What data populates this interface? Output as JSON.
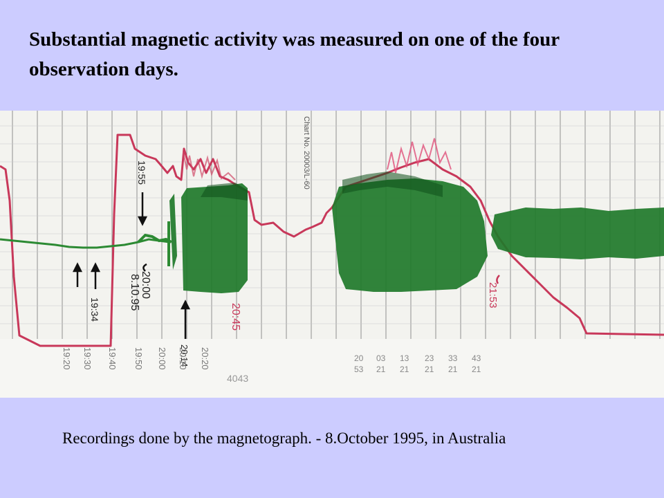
{
  "slide": {
    "title": "Substantial magnetic activity was measured on one of the four observation days.",
    "caption": "Recordings done by the magnetograph. - 8.October 1995, in Australia"
  },
  "photo": {
    "annotations": {
      "chart_no": "Chart No. 20003/L-60",
      "t1955": "19:55",
      "t1934": "19:34",
      "t2000": "20:00",
      "date": "8.10.95",
      "t2014": "20:14",
      "t2045": "20:45",
      "t2153": "21:53",
      "stamp": "4043"
    },
    "time_axis": [
      "19:20",
      "19:30",
      "19:40",
      "19:50",
      "20:00",
      "20:10",
      "20:20"
    ],
    "scale_marks": [
      "20 53",
      "03 21",
      "13 21",
      "23 21",
      "33 21",
      "43 21"
    ],
    "colors": {
      "green_trace": "#1f7a2a",
      "red_trace": "#c8385a",
      "grid": "#999999"
    }
  }
}
